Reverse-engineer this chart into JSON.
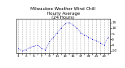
{
  "title_line1": "Milwaukee Weather Wind Chill",
  "title_line2": "Hourly Average",
  "title_line3": "(24 Hours)",
  "hours": [
    1,
    2,
    3,
    4,
    5,
    6,
    7,
    8,
    9,
    10,
    11,
    12,
    13,
    14,
    15,
    16,
    17,
    18,
    19,
    20,
    21,
    22,
    23,
    24
  ],
  "wind_chill": [
    -8,
    -10,
    -9,
    -7,
    -6,
    -5,
    -8,
    -9,
    -2,
    2,
    6,
    10,
    14,
    15,
    13,
    10,
    6,
    4,
    2,
    0,
    -1,
    -3,
    -5,
    2
  ],
  "line_color": "#0000cc",
  "bg_color": "#ffffff",
  "grid_color": "#888888",
  "ylim": [
    -12,
    18
  ],
  "yticks": [
    -10,
    -5,
    0,
    5,
    10,
    15
  ],
  "title_fontsize": 4.0,
  "tick_fontsize": 3.2
}
